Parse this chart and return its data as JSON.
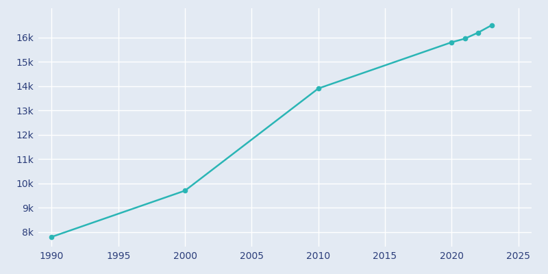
{
  "years": [
    1990,
    2000,
    2010,
    2020,
    2021,
    2022,
    2023
  ],
  "population": [
    7800,
    9700,
    13900,
    15800,
    15950,
    16200,
    16500
  ],
  "line_color": "#2ab5b5",
  "marker_color": "#2ab5b5",
  "background_color": "#e3eaf3",
  "grid_color": "#ffffff",
  "tick_label_color": "#2b3d7a",
  "xlim": [
    1989,
    2026
  ],
  "ylim": [
    7400,
    17200
  ],
  "xticks": [
    1990,
    1995,
    2000,
    2005,
    2010,
    2015,
    2020,
    2025
  ],
  "ytick_values": [
    8000,
    9000,
    10000,
    11000,
    12000,
    13000,
    14000,
    15000,
    16000
  ],
  "ytick_labels": [
    "8k",
    "9k",
    "10k",
    "11k",
    "12k",
    "13k",
    "14k",
    "15k",
    "16k"
  ],
  "line_width": 1.8,
  "marker_size": 4.5
}
